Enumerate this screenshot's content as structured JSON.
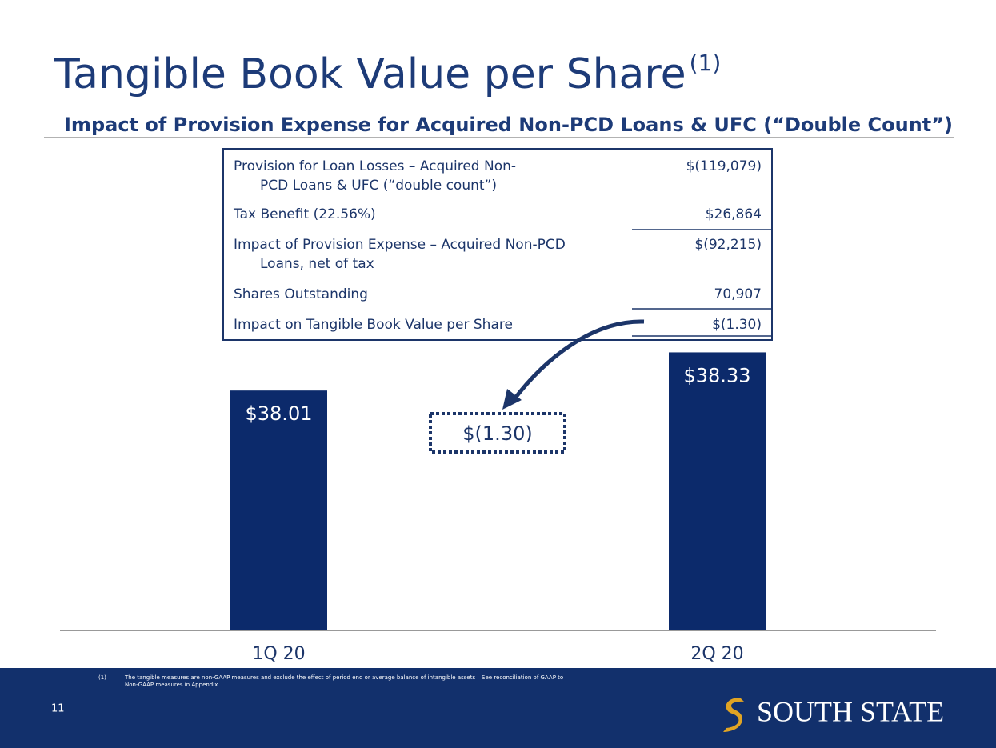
{
  "title": "Tangible Book Value per Share",
  "title_note": "(1)",
  "subtitle": "Impact of Provision Expense for Acquired Non-PCD Loans & UFC (“Double Count”)",
  "table": {
    "rows": [
      {
        "label": [
          "Provision for Loan Losses – Acquired Non-",
          "PCD Loans & UFC (“double count”)"
        ],
        "value": "$(119,079)"
      },
      {
        "label": [
          "Tax Benefit (22.56%)"
        ],
        "value": "$26,864"
      },
      {
        "label": [
          "Impact of Provision Expense – Acquired Non-PCD",
          "Loans, net of tax"
        ],
        "value": "$(92,215)"
      },
      {
        "label": [
          "Shares Outstanding"
        ],
        "value": "70,907"
      },
      {
        "label": [
          "Impact on Tangible Book Value per Share"
        ],
        "value": "$(1.30)"
      }
    ]
  },
  "callout": "$(1.30)",
  "footnote": {
    "marker": "(1)",
    "lines": [
      "The tangible measures are non-GAAP measures and exclude the effect of period end or average balance of intangible assets – See reconciliation of GAAP to",
      "Non-GAAP measures in Appendix"
    ]
  },
  "page_number": "11",
  "logo": "SOUTH STATE",
  "chart_data": {
    "type": "bar",
    "categories": [
      "1Q 20",
      "2Q 20"
    ],
    "values": [
      38.01,
      38.33
    ],
    "value_labels": [
      "$38.01",
      "$38.33"
    ],
    "color": "#0c2a6b",
    "ylim": [
      36,
      38.4
    ]
  }
}
